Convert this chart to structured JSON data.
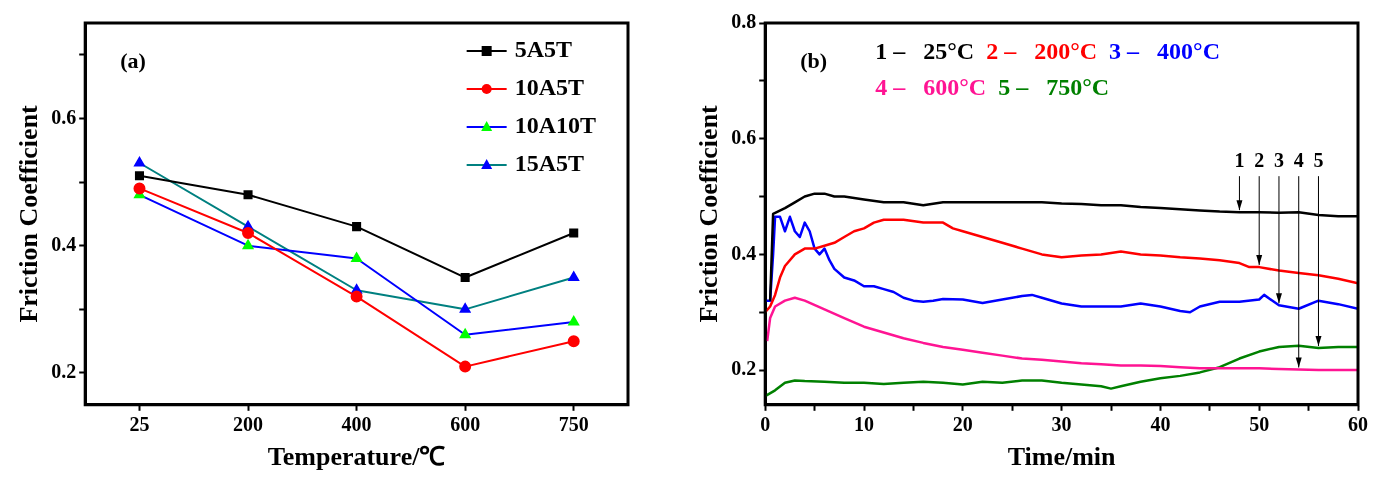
{
  "chart_data": [
    {
      "type": "line",
      "xlabel": "Temperature/℃",
      "ylabel": "Friction Coefficient",
      "annotations": [
        "(a)"
      ],
      "categories": [
        "25",
        "200",
        "400",
        "600",
        "750"
      ],
      "series": [
        {
          "name": "5A5T",
          "color": "#000000",
          "marker": "square",
          "values": [
            0.51,
            0.48,
            0.43,
            0.35,
            0.42
          ]
        },
        {
          "name": "10A5T",
          "color": "#ff0000",
          "marker": "circle",
          "values": [
            0.49,
            0.42,
            0.32,
            0.21,
            0.25
          ]
        },
        {
          "name": "10A10T",
          "color": "#0000ff",
          "colors": [
            "#00ff00",
            "#00ff00",
            "#00ff00",
            "#00ff00",
            "#00ff00"
          ],
          "marker": "triangle",
          "values": [
            0.48,
            0.4,
            0.38,
            0.26,
            0.28
          ]
        },
        {
          "name": "15A5T",
          "color": "#008080",
          "colors": [
            "#0000ff",
            "#0000ff",
            "#0000ff",
            "#0000ff",
            "#0000ff"
          ],
          "marker": "triangle",
          "values": [
            0.53,
            0.43,
            0.33,
            0.3,
            0.35
          ]
        }
      ],
      "ylim": [
        0.15,
        0.75
      ],
      "yticks": [
        0.2,
        {
          "value": 0.3,
          "label": null
        },
        0.4,
        {
          "value": 0.5,
          "label": null
        },
        0.6,
        {
          "value": 0.7,
          "label": null
        }
      ],
      "grid": false,
      "legend": "top right",
      "line_style": "solid"
    },
    {
      "type": "line",
      "xlabel": "Time/min",
      "ylabel": "Friction Coefficient",
      "marker": "none",
      "line_style": "solid",
      "annotations": [
        "(b)",
        {
          "text": "1",
          "x": 48,
          "y": 0.473
        },
        {
          "text": "2",
          "x": 50,
          "y": 0.378
        },
        {
          "text": "3",
          "x": 52,
          "y": 0.312
        },
        {
          "text": "4",
          "x": 54,
          "y": 0.201
        },
        {
          "text": "5",
          "x": 56,
          "y": 0.238
        }
      ],
      "series": [
        {
          "name": "1 –   25°C",
          "color": "#000000",
          "x": [
            0.5,
            0.8,
            2,
            3,
            4,
            5,
            6,
            7,
            8,
            10,
            12,
            14,
            16,
            18,
            20,
            22,
            24,
            26,
            28,
            30,
            32,
            34,
            36,
            38,
            40,
            42,
            44,
            46,
            48,
            50,
            52,
            54,
            56,
            58,
            60
          ],
          "values": [
            0.32,
            0.47,
            0.48,
            0.49,
            0.5,
            0.505,
            0.505,
            0.5,
            0.5,
            0.495,
            0.49,
            0.49,
            0.485,
            0.49,
            0.49,
            0.49,
            0.49,
            0.49,
            0.49,
            0.488,
            0.487,
            0.485,
            0.485,
            0.482,
            0.48,
            0.478,
            0.476,
            0.474,
            0.473,
            0.473,
            0.472,
            0.473,
            0.468,
            0.466,
            0.466
          ]
        },
        {
          "name": "2 –   200°C",
          "color": "#ff0000",
          "x": [
            0,
            0.5,
            1,
            1.5,
            2,
            3,
            4,
            5,
            6,
            7,
            8,
            9,
            10,
            11,
            12,
            14,
            16,
            18,
            19,
            20,
            22,
            24,
            26,
            28,
            30,
            32,
            34,
            36,
            38,
            40,
            42,
            44,
            46,
            48,
            49,
            50,
            52,
            54,
            56,
            58,
            60
          ],
          "values": [
            0.3,
            0.31,
            0.33,
            0.36,
            0.38,
            0.4,
            0.41,
            0.41,
            0.415,
            0.42,
            0.43,
            0.44,
            0.445,
            0.455,
            0.46,
            0.46,
            0.455,
            0.455,
            0.445,
            0.44,
            0.43,
            0.42,
            0.41,
            0.4,
            0.395,
            0.398,
            0.4,
            0.405,
            0.4,
            0.398,
            0.395,
            0.393,
            0.39,
            0.385,
            0.378,
            0.378,
            0.372,
            0.368,
            0.364,
            0.358,
            0.35
          ]
        },
        {
          "name": "3 –   400°C",
          "color": "#0000ff",
          "x": [
            0,
            0.5,
            0.8,
            1,
            1.5,
            2,
            2.5,
            3,
            3.5,
            4,
            4.5,
            5,
            5.5,
            6,
            6.5,
            7,
            8,
            9,
            10,
            11,
            12,
            13,
            14,
            15,
            16,
            17,
            18,
            20,
            22,
            24,
            26,
            27,
            28,
            30,
            32,
            34,
            36,
            38,
            40,
            42,
            43,
            44,
            46,
            48,
            50,
            50.5,
            52,
            54,
            56,
            58,
            60
          ],
          "values": [
            0.32,
            0.32,
            0.4,
            0.465,
            0.465,
            0.44,
            0.465,
            0.44,
            0.43,
            0.455,
            0.44,
            0.41,
            0.4,
            0.41,
            0.39,
            0.375,
            0.36,
            0.355,
            0.345,
            0.345,
            0.34,
            0.335,
            0.325,
            0.32,
            0.318,
            0.32,
            0.323,
            0.322,
            0.316,
            0.322,
            0.328,
            0.33,
            0.325,
            0.315,
            0.31,
            0.31,
            0.31,
            0.315,
            0.31,
            0.302,
            0.3,
            0.31,
            0.318,
            0.318,
            0.322,
            0.33,
            0.312,
            0.306,
            0.32,
            0.314,
            0.306
          ]
        },
        {
          "name": "4 –   600°C",
          "color": "#ff1493",
          "x": [
            0.2,
            0.5,
            1,
            2,
            3,
            4,
            6,
            8,
            10,
            12,
            14,
            16,
            18,
            20,
            22,
            24,
            26,
            28,
            30,
            32,
            34,
            36,
            38,
            40,
            42,
            44,
            46,
            48,
            50,
            52,
            54,
            56,
            58,
            60
          ],
          "values": [
            0.25,
            0.29,
            0.31,
            0.32,
            0.325,
            0.32,
            0.305,
            0.29,
            0.275,
            0.265,
            0.255,
            0.247,
            0.24,
            0.235,
            0.23,
            0.225,
            0.22,
            0.218,
            0.215,
            0.212,
            0.21,
            0.208,
            0.208,
            0.207,
            0.205,
            0.203,
            0.203,
            0.203,
            0.203,
            0.202,
            0.201,
            0.2,
            0.2,
            0.2
          ]
        },
        {
          "name": "5 –   750°C",
          "color": "#008000",
          "x": [
            0,
            1,
            2,
            3,
            4,
            6,
            8,
            10,
            12,
            14,
            16,
            18,
            20,
            22,
            24,
            26,
            28,
            30,
            32,
            34,
            35,
            36,
            38,
            40,
            42,
            44,
            46,
            48,
            50,
            52,
            54,
            56,
            58,
            60
          ],
          "values": [
            0.155,
            0.165,
            0.178,
            0.182,
            0.181,
            0.18,
            0.178,
            0.178,
            0.176,
            0.178,
            0.18,
            0.178,
            0.175,
            0.18,
            0.178,
            0.182,
            0.182,
            0.178,
            0.175,
            0.172,
            0.168,
            0.172,
            0.18,
            0.186,
            0.19,
            0.196,
            0.205,
            0.22,
            0.232,
            0.24,
            0.242,
            0.238,
            0.24,
            0.24
          ]
        }
      ],
      "xlim": [
        0,
        60
      ],
      "xticks": [
        0,
        {
          "value": 5,
          "label": null
        },
        10,
        {
          "value": 15,
          "label": null
        },
        20,
        {
          "value": 25,
          "label": null
        },
        30,
        {
          "value": 35,
          "label": null
        },
        40,
        {
          "value": 45,
          "label": null
        },
        50,
        {
          "value": 55,
          "label": null
        },
        60
      ],
      "ylim": [
        0.14,
        0.8
      ],
      "yticks": [
        0.2,
        {
          "value": 0.3,
          "label": null
        },
        0.4,
        {
          "value": 0.5,
          "label": null
        },
        0.6,
        {
          "value": 0.7,
          "label": null
        },
        0.8
      ],
      "grid": false,
      "legend": "top"
    }
  ]
}
